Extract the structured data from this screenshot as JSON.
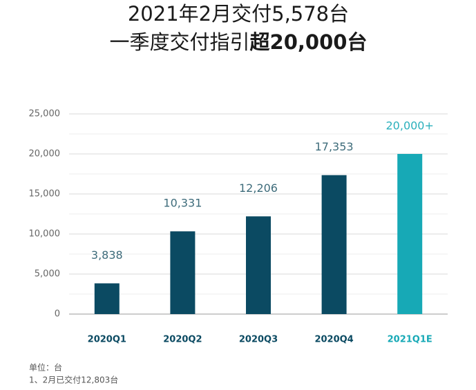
{
  "chart_data": {
    "type": "bar",
    "title": "2021年2月交付5,578台",
    "subtitle": [
      "一季度交付指引",
      "超20,000台"
    ],
    "categories": [
      "2020Q1",
      "2020Q2",
      "2020Q3",
      "2020Q4",
      "2021Q1E"
    ],
    "values": [
      3838,
      10331,
      12206,
      17353,
      20000
    ],
    "value_labels": [
      "3,838",
      "10,331",
      "12,206",
      "17,353",
      "20,000+"
    ],
    "colors": [
      "#0b4a62",
      "#0b4a62",
      "#0b4a62",
      "#0b4a62",
      "#17a9b6"
    ],
    "ylim": [
      0,
      25000
    ],
    "yticks": [
      0,
      {
        "value": 5000,
        "label": "5,000"
      },
      {
        "value": 10000,
        "label": "10,000"
      },
      {
        "value": 15000,
        "label": "15,000"
      },
      {
        "value": 20000,
        "label": "20,000"
      },
      {
        "value": 25000,
        "label": "25,000"
      }
    ],
    "minor_yticks": [
      2500,
      7500,
      12500,
      17500,
      22500
    ],
    "grid": true,
    "notes": [
      "单位：台",
      "1、2月已交付12,803台"
    ]
  }
}
